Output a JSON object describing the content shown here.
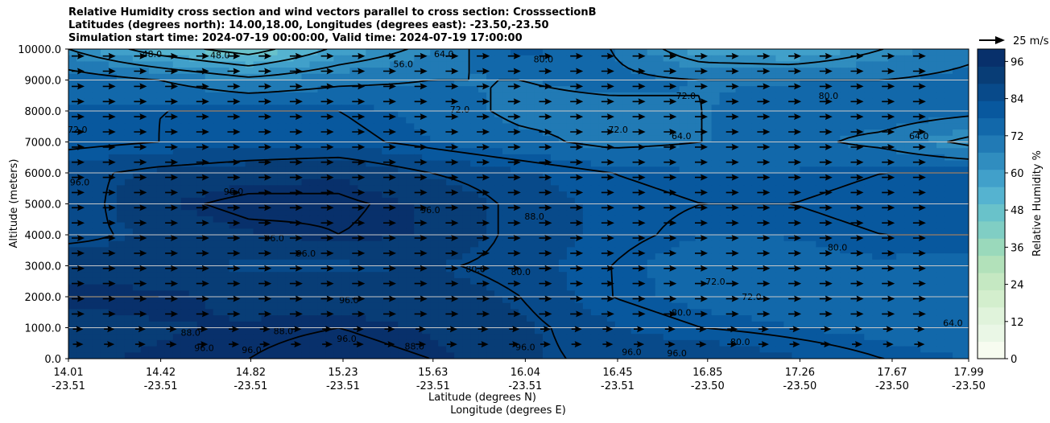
{
  "chart_data": {
    "type": "heatmap",
    "title_lines": [
      "Relative Humidity cross section and wind vectors parallel to cross section: CrosssectionB",
      "Latitudes (degrees north): 14.00,18.00, Longitudes (degrees east): -23.50,-23.50",
      "Simulation start time: 2024-07-19 00:00:00, Valid time: 2024-07-19 17:00:00"
    ],
    "ylabel": "Altitude (meters)",
    "xlabel_lat": "Latitude (degrees N)",
    "xlabel_lon": "Longitude (degrees E)",
    "ylim": [
      0,
      10000
    ],
    "y_ticks": [
      "0.0",
      "1000.0",
      "2000.0",
      "3000.0",
      "4000.0",
      "5000.0",
      "6000.0",
      "7000.0",
      "8000.0",
      "9000.0",
      "10000.0"
    ],
    "x_ticks": [
      {
        "lat": "14.01",
        "lon": "-23.51"
      },
      {
        "lat": "14.42",
        "lon": "-23.51"
      },
      {
        "lat": "14.82",
        "lon": "-23.51"
      },
      {
        "lat": "15.23",
        "lon": "-23.51"
      },
      {
        "lat": "15.63",
        "lon": "-23.51"
      },
      {
        "lat": "16.04",
        "lon": "-23.51"
      },
      {
        "lat": "16.45",
        "lon": "-23.51"
      },
      {
        "lat": "16.85",
        "lon": "-23.50"
      },
      {
        "lat": "17.26",
        "lon": "-23.50"
      },
      {
        "lat": "17.67",
        "lon": "-23.50"
      },
      {
        "lat": "17.99",
        "lon": "-23.50"
      }
    ],
    "x_tick_fraction": [
      0,
      0.1025,
      0.2025,
      0.305,
      0.405,
      0.5075,
      0.61,
      0.71,
      0.8125,
      0.915,
      1.0
    ],
    "lat_range": [
      14.01,
      17.99
    ],
    "colorbar": {
      "label": "Relative Humidity %",
      "range": [
        0,
        100
      ],
      "ticks": [
        "0",
        "12",
        "24",
        "36",
        "48",
        "60",
        "72",
        "84",
        "96"
      ],
      "colors": [
        "#f7fcf0",
        "#eaf7e6",
        "#e0f3db",
        "#d3eecd",
        "#c5e8c2",
        "#b2e1ba",
        "#9ad9bb",
        "#80cec4",
        "#69c2ca",
        "#55b3d0",
        "#41a0ca",
        "#308dbf",
        "#217ab5",
        "#1268aa",
        "#08589e",
        "#084a8a",
        "#083d76",
        "#08306b"
      ]
    },
    "quiver_key": "25 m/s",
    "grid": "horizontal",
    "contour_levels": [
      48,
      56,
      64,
      72,
      80,
      88,
      96
    ],
    "rh_field": {
      "heights_m": [
        0,
        1000,
        2000,
        3000,
        4000,
        5000,
        6000,
        7000,
        8000,
        9000,
        10000
      ],
      "latitudes": [
        14.01,
        14.41,
        14.81,
        15.21,
        15.61,
        16.01,
        16.41,
        16.81,
        17.21,
        17.61,
        17.99
      ],
      "rows": [
        [
          94,
          95,
          96,
          98,
          96,
          90,
          86,
          88,
          84,
          80,
          78
        ],
        [
          92,
          94,
          95,
          96,
          94,
          90,
          84,
          80,
          78,
          76,
          72
        ],
        [
          96,
          96,
          93,
          92,
          92,
          88,
          80,
          76,
          74,
          73,
          74
        ],
        [
          93,
          90,
          88,
          88,
          89,
          86,
          80,
          74,
          76,
          77,
          76
        ],
        [
          86,
          90,
          94,
          96,
          94,
          86,
          82,
          78,
          78,
          80,
          80
        ],
        [
          84,
          94,
          98,
          97,
          94,
          86,
          82,
          80,
          80,
          82,
          82
        ],
        [
          86,
          90,
          92,
          94,
          88,
          84,
          80,
          78,
          78,
          80,
          80
        ],
        [
          78,
          80,
          82,
          82,
          78,
          74,
          70,
          72,
          74,
          70,
          62
        ],
        [
          78,
          80,
          80,
          80,
          76,
          70,
          70,
          72,
          74,
          76,
          74
        ],
        [
          76,
          72,
          66,
          70,
          72,
          72,
          74,
          72,
          72,
          72,
          74
        ],
        [
          64,
          52,
          44,
          58,
          66,
          80,
          72,
          58,
          56,
          64,
          70
        ]
      ]
    },
    "contour_labels": [
      {
        "text": "48.0",
        "lat": 14.38,
        "alt": 9850
      },
      {
        "text": "48.0",
        "lat": 14.68,
        "alt": 9800
      },
      {
        "text": "56.0",
        "lat": 15.49,
        "alt": 9520
      },
      {
        "text": "64.0",
        "lat": 15.67,
        "alt": 9850
      },
      {
        "text": "80.0",
        "lat": 16.11,
        "alt": 9680
      },
      {
        "text": "72.0",
        "lat": 15.74,
        "alt": 8050
      },
      {
        "text": "72.0",
        "lat": 16.74,
        "alt": 8500
      },
      {
        "text": "72.0",
        "lat": 16.44,
        "alt": 7400
      },
      {
        "text": "64.0",
        "lat": 16.72,
        "alt": 7200
      },
      {
        "text": "80.0",
        "lat": 17.37,
        "alt": 8500
      },
      {
        "text": "64.0",
        "lat": 17.77,
        "alt": 7200
      },
      {
        "text": "72.0",
        "lat": 14.05,
        "alt": 7400
      },
      {
        "text": "96.0",
        "lat": 14.06,
        "alt": 5700
      },
      {
        "text": "96.0",
        "lat": 14.74,
        "alt": 5400
      },
      {
        "text": "96.0",
        "lat": 15.61,
        "alt": 4800
      },
      {
        "text": "88.0",
        "lat": 16.07,
        "alt": 4600
      },
      {
        "text": "96.0",
        "lat": 14.92,
        "alt": 3900
      },
      {
        "text": "96.0",
        "lat": 15.06,
        "alt": 3400
      },
      {
        "text": "80.0",
        "lat": 17.41,
        "alt": 3600
      },
      {
        "text": "80.0",
        "lat": 15.81,
        "alt": 2900
      },
      {
        "text": "80.0",
        "lat": 16.01,
        "alt": 2800
      },
      {
        "text": "72.0",
        "lat": 16.87,
        "alt": 2500
      },
      {
        "text": "72.0",
        "lat": 17.03,
        "alt": 2000
      },
      {
        "text": "96.0",
        "lat": 15.25,
        "alt": 1900
      },
      {
        "text": "80.0",
        "lat": 16.72,
        "alt": 1500
      },
      {
        "text": "64.0",
        "lat": 17.92,
        "alt": 1150
      },
      {
        "text": "88.0",
        "lat": 14.55,
        "alt": 850
      },
      {
        "text": "88.0",
        "lat": 14.96,
        "alt": 900
      },
      {
        "text": "96.0",
        "lat": 15.24,
        "alt": 650
      },
      {
        "text": "80.0",
        "lat": 16.98,
        "alt": 550
      },
      {
        "text": "88.0",
        "lat": 15.54,
        "alt": 400
      },
      {
        "text": "96.0",
        "lat": 14.61,
        "alt": 350
      },
      {
        "text": "96.0",
        "lat": 14.82,
        "alt": 280
      },
      {
        "text": "96.0",
        "lat": 16.03,
        "alt": 380
      },
      {
        "text": "96.0",
        "lat": 16.5,
        "alt": 220
      },
      {
        "text": "96.0",
        "lat": 16.7,
        "alt": 180
      }
    ]
  }
}
